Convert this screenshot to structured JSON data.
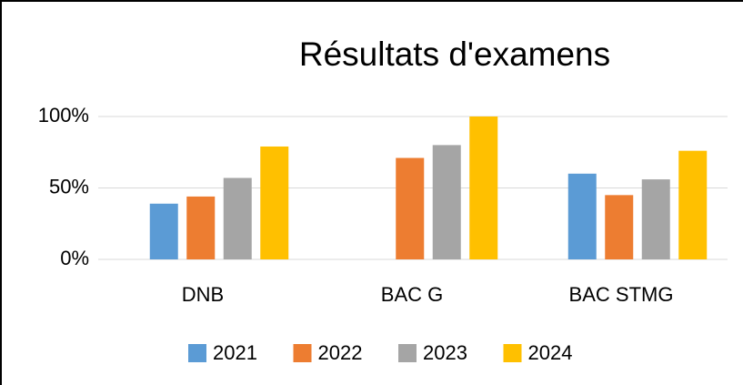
{
  "chart_data": {
    "type": "bar",
    "title": "Résultats d'examens",
    "categories": [
      "DNB",
      "BAC G",
      "BAC STMG"
    ],
    "series": [
      {
        "name": "2021",
        "color": "#5b9bd5",
        "values": [
          39,
          null,
          60
        ]
      },
      {
        "name": "2022",
        "color": "#ed7d31",
        "values": [
          44,
          71,
          45
        ]
      },
      {
        "name": "2023",
        "color": "#a5a5a5",
        "values": [
          57,
          80,
          56
        ]
      },
      {
        "name": "2024",
        "color": "#ffc000",
        "values": [
          79,
          100,
          76
        ]
      }
    ],
    "ylim": [
      0,
      100
    ],
    "yticks": [
      {
        "value": 0,
        "label": "0%"
      },
      {
        "value": 50,
        "label": "50%"
      },
      {
        "value": 100,
        "label": "100%"
      }
    ],
    "grid": true,
    "legend": "bottom"
  }
}
